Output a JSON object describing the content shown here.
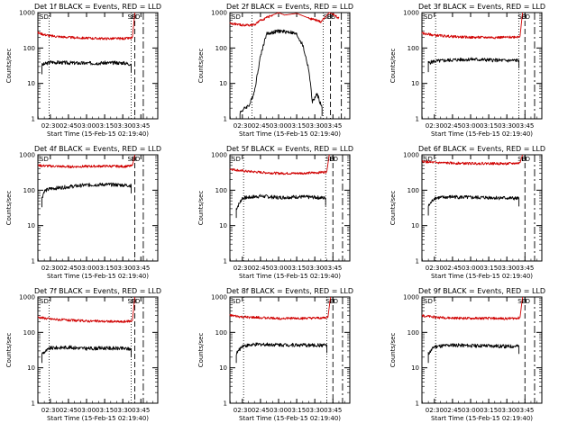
{
  "figure": {
    "colors": {
      "events": "#000000",
      "lld": "#d00000",
      "axes": "#000000"
    },
    "x_tick_labels": [
      "02:30",
      "02:45",
      "03:00",
      "03:15",
      "03:30",
      "03:45"
    ],
    "y_tick_labels": [
      "1",
      "10",
      "100",
      "1000"
    ],
    "panels": [
      {
        "title": "Det 1f BLACK = Events, RED = LLD",
        "ylabel": "Counts/sec",
        "xlabel": "Start Time (15-Feb-15 02:19:40)"
      },
      {
        "title": "Det 2f BLACK = Events, RED = LLD",
        "ylabel": "Counts/sec",
        "xlabel": "Start Time (15-Feb-15 02:19:40)"
      },
      {
        "title": "Det 3f BLACK = Events, RED = LLD",
        "ylabel": "Counts/sec",
        "xlabel": "Start Time (15-Feb-15 02:19:40)"
      },
      {
        "title": "Det 4f BLACK = Events, RED = LLD",
        "ylabel": "Counts/sec",
        "xlabel": "Start Time (15-Feb-15 02:19:40)"
      },
      {
        "title": "Det 5f BLACK = Events, RED = LLD",
        "ylabel": "Counts/sec",
        "xlabel": "Start Time (15-Feb-15 02:19:40)"
      },
      {
        "title": "Det 6f BLACK = Events, RED = LLD",
        "ylabel": "Counts/sec",
        "xlabel": "Start Time (15-Feb-15 02:19:40)"
      },
      {
        "title": "Det 7f BLACK = Events, RED = LLD",
        "ylabel": "Counts/sec",
        "xlabel": "Start Time (15-Feb-15 02:19:40)"
      },
      {
        "title": "Det 8f BLACK = Events, RED = LLD",
        "ylabel": "Counts/sec",
        "xlabel": "Start Time (15-Feb-15 02:19:40)"
      },
      {
        "title": "Det 9f BLACK = Events, RED = LLD",
        "ylabel": "Counts/sec",
        "xlabel": "Start Time (15-Feb-15 02:19:40)"
      }
    ]
  },
  "chart_data": [
    {
      "type": "line",
      "title": "Det 1f BLACK = Events, RED = LLD",
      "xlabel": "Start Time (15-Feb-15 02:19:40)",
      "ylabel": "Counts/sec",
      "y_scale": "log",
      "ylim": [
        1,
        1000
      ],
      "xlim": [
        "02:19:40",
        "03:59"
      ],
      "annotations": [
        "SD",
        "ED"
      ],
      "dotted_lines": [
        "02:29",
        "03:37"
      ],
      "dashed_lines": [
        "03:40",
        "03:47"
      ],
      "series": [
        {
          "name": "Events",
          "color": "#000000",
          "x": [
            "02:23",
            "02:30",
            "02:45",
            "03:00",
            "03:15",
            "03:30",
            "03:37"
          ],
          "y": [
            33,
            40,
            38,
            37,
            38,
            38,
            35
          ]
        },
        {
          "name": "LLD",
          "color": "#d00000",
          "x": [
            "02:19:40",
            "02:25",
            "02:30",
            "02:45",
            "03:00",
            "03:15",
            "03:30",
            "03:37",
            "03:38",
            "03:40"
          ],
          "y": [
            270,
            240,
            220,
            200,
            190,
            185,
            185,
            190,
            200,
            1000
          ]
        }
      ]
    },
    {
      "type": "line",
      "title": "Det 2f BLACK = Events, RED = LLD",
      "xlabel": "Start Time (15-Feb-15 02:19:40)",
      "ylabel": "Counts/sec",
      "y_scale": "log",
      "ylim": [
        1,
        1000
      ],
      "xlim": [
        "02:19:40",
        "03:59"
      ],
      "annotations": [
        "SD",
        "ED"
      ],
      "dotted_lines": [
        "02:38",
        "03:37"
      ],
      "dashed_lines": [
        "03:43",
        "03:52"
      ],
      "series": [
        {
          "name": "Events",
          "color": "#000000",
          "x": [
            "02:28",
            "02:32",
            "02:36",
            "02:40",
            "02:45",
            "02:50",
            "03:00",
            "03:10",
            "03:15",
            "03:20",
            "03:25",
            "03:28",
            "03:32",
            "03:36"
          ],
          "y": [
            1.5,
            2,
            2.5,
            6,
            60,
            250,
            300,
            280,
            240,
            120,
            25,
            3,
            5,
            2
          ]
        },
        {
          "name": "LLD",
          "color": "#d00000",
          "x": [
            "02:19:40",
            "02:30",
            "02:40",
            "02:45",
            "02:55",
            "03:00",
            "03:05",
            "03:15",
            "03:25",
            "03:35",
            "03:38",
            "03:42",
            "03:45",
            "03:50"
          ],
          "y": [
            500,
            440,
            450,
            600,
            850,
            1000,
            850,
            950,
            700,
            550,
            700,
            1000,
            900,
            700
          ]
        }
      ]
    },
    {
      "type": "line",
      "title": "Det 3f BLACK = Events, RED = LLD",
      "xlabel": "Start Time (15-Feb-15 02:19:40)",
      "ylabel": "Counts/sec",
      "y_scale": "log",
      "ylim": [
        1,
        1000
      ],
      "xlim": [
        "02:19:40",
        "03:59"
      ],
      "annotations": [
        "SD",
        "ED"
      ],
      "dotted_lines": [
        "02:31",
        "03:40"
      ],
      "dashed_lines": [
        "03:45",
        "03:53"
      ],
      "series": [
        {
          "name": "Events",
          "color": "#000000",
          "x": [
            "02:25",
            "02:30",
            "02:45",
            "03:00",
            "03:15",
            "03:30",
            "03:40"
          ],
          "y": [
            38,
            42,
            46,
            48,
            46,
            44,
            45
          ]
        },
        {
          "name": "LLD",
          "color": "#d00000",
          "x": [
            "02:19:40",
            "02:30",
            "02:45",
            "03:00",
            "03:15",
            "03:30",
            "03:40",
            "03:41",
            "03:43"
          ],
          "y": [
            260,
            230,
            210,
            200,
            200,
            200,
            210,
            220,
            1000
          ]
        }
      ]
    },
    {
      "type": "line",
      "title": "Det 4f BLACK = Events, RED = LLD",
      "xlabel": "Start Time (15-Feb-15 02:19:40)",
      "ylabel": "Counts/sec",
      "y_scale": "log",
      "ylim": [
        1,
        1000
      ],
      "xlim": [
        "02:19:40",
        "03:59"
      ],
      "annotations": [
        "SD",
        "ED"
      ],
      "dotted_lines": [],
      "dashed_lines": [
        "03:40",
        "03:47"
      ],
      "series": [
        {
          "name": "Events",
          "color": "#000000",
          "x": [
            "02:23",
            "02:25",
            "02:30",
            "02:45",
            "03:00",
            "03:15",
            "03:30",
            "03:37"
          ],
          "y": [
            60,
            95,
            110,
            125,
            140,
            145,
            140,
            135
          ]
        },
        {
          "name": "LLD",
          "color": "#d00000",
          "x": [
            "02:19:40",
            "02:30",
            "02:45",
            "03:00",
            "03:15",
            "03:30",
            "03:37",
            "03:38",
            "03:40"
          ],
          "y": [
            500,
            480,
            460,
            470,
            480,
            470,
            480,
            500,
            1000
          ]
        }
      ]
    },
    {
      "type": "line",
      "title": "Det 5f BLACK = Events, RED = LLD",
      "xlabel": "Start Time (15-Feb-15 02:19:40)",
      "ylabel": "Counts/sec",
      "y_scale": "log",
      "ylim": [
        1,
        1000
      ],
      "xlim": [
        "02:19:40",
        "03:59"
      ],
      "annotations": [
        "SD",
        "ED"
      ],
      "dotted_lines": [
        "02:31",
        "03:39"
      ],
      "dashed_lines": [
        "03:45",
        "03:53"
      ],
      "series": [
        {
          "name": "Events",
          "color": "#000000",
          "x": [
            "02:25",
            "02:30",
            "02:45",
            "03:00",
            "03:15",
            "03:30",
            "03:39"
          ],
          "y": [
            30,
            60,
            68,
            62,
            65,
            63,
            60
          ]
        },
        {
          "name": "LLD",
          "color": "#d00000",
          "x": [
            "02:19:40",
            "02:30",
            "02:45",
            "03:00",
            "03:15",
            "03:30",
            "03:39",
            "03:40",
            "03:42"
          ],
          "y": [
            400,
            350,
            320,
            300,
            300,
            310,
            330,
            350,
            1000
          ]
        }
      ]
    },
    {
      "type": "line",
      "title": "Det 6f BLACK = Events, RED = LLD",
      "xlabel": "Start Time (15-Feb-15 02:19:40)",
      "ylabel": "Counts/sec",
      "y_scale": "log",
      "ylim": [
        1,
        1000
      ],
      "xlim": [
        "02:19:40",
        "03:59"
      ],
      "annotations": [
        "SD",
        "ED"
      ],
      "dotted_lines": [
        "02:31"
      ],
      "dashed_lines": [
        "03:45",
        "03:53"
      ],
      "series": [
        {
          "name": "Events",
          "color": "#000000",
          "x": [
            "02:25",
            "02:30",
            "02:45",
            "03:00",
            "03:15",
            "03:30",
            "03:40"
          ],
          "y": [
            35,
            60,
            65,
            62,
            62,
            60,
            58
          ]
        },
        {
          "name": "LLD",
          "color": "#d00000",
          "x": [
            "02:19:40",
            "02:30",
            "02:45",
            "03:00",
            "03:15",
            "03:30",
            "03:40",
            "03:41",
            "03:43"
          ],
          "y": [
            650,
            600,
            580,
            570,
            570,
            560,
            580,
            600,
            1000
          ]
        }
      ]
    },
    {
      "type": "line",
      "title": "Det 7f BLACK = Events, RED = LLD",
      "xlabel": "Start Time (15-Feb-15 02:19:40)",
      "ylabel": "Counts/sec",
      "y_scale": "log",
      "ylim": [
        1,
        1000
      ],
      "xlim": [
        "02:19:40",
        "03:59"
      ],
      "annotations": [
        "SD",
        "ED"
      ],
      "dotted_lines": [
        "02:29",
        "03:37"
      ],
      "dashed_lines": [
        "03:40",
        "03:47"
      ],
      "series": [
        {
          "name": "Events",
          "color": "#000000",
          "x": [
            "02:23",
            "02:30",
            "02:45",
            "03:00",
            "03:15",
            "03:30",
            "03:37"
          ],
          "y": [
            25,
            36,
            38,
            35,
            36,
            35,
            34
          ]
        },
        {
          "name": "LLD",
          "color": "#d00000",
          "x": [
            "02:19:40",
            "02:30",
            "02:45",
            "03:00",
            "03:15",
            "03:30",
            "03:37",
            "03:38",
            "03:40"
          ],
          "y": [
            270,
            240,
            220,
            210,
            205,
            200,
            210,
            220,
            1000
          ]
        }
      ]
    },
    {
      "type": "line",
      "title": "Det 8f BLACK = Events, RED = LLD",
      "xlabel": "Start Time (15-Feb-15 02:19:40)",
      "ylabel": "Counts/sec",
      "y_scale": "log",
      "ylim": [
        1,
        1000
      ],
      "xlim": [
        "02:19:40",
        "03:59"
      ],
      "annotations": [
        "SD",
        "ED"
      ],
      "dotted_lines": [
        "02:31",
        "03:40"
      ],
      "dashed_lines": [
        "03:45",
        "03:53"
      ],
      "series": [
        {
          "name": "Events",
          "color": "#000000",
          "x": [
            "02:25",
            "02:30",
            "02:45",
            "03:00",
            "03:15",
            "03:30",
            "03:40"
          ],
          "y": [
            25,
            42,
            46,
            45,
            44,
            43,
            44
          ]
        },
        {
          "name": "LLD",
          "color": "#d00000",
          "x": [
            "02:19:40",
            "02:30",
            "02:45",
            "03:00",
            "03:15",
            "03:30",
            "03:40",
            "03:41",
            "03:43"
          ],
          "y": [
            300,
            270,
            260,
            250,
            250,
            250,
            260,
            280,
            1000
          ]
        }
      ]
    },
    {
      "type": "line",
      "title": "Det 9f BLACK = Events, RED = LLD",
      "xlabel": "Start Time (15-Feb-15 02:19:40)",
      "ylabel": "Counts/sec",
      "y_scale": "log",
      "ylim": [
        1,
        1000
      ],
      "xlim": [
        "02:19:40",
        "03:59"
      ],
      "annotations": [
        "SD",
        "ED"
      ],
      "dotted_lines": [
        "02:31"
      ],
      "dashed_lines": [
        "03:45",
        "03:53"
      ],
      "series": [
        {
          "name": "Events",
          "color": "#000000",
          "x": [
            "02:25",
            "02:30",
            "02:45",
            "03:00",
            "03:15",
            "03:30",
            "03:40"
          ],
          "y": [
            25,
            40,
            44,
            42,
            42,
            40,
            41
          ]
        },
        {
          "name": "LLD",
          "color": "#d00000",
          "x": [
            "02:19:40",
            "02:30",
            "02:45",
            "03:00",
            "03:15",
            "03:30",
            "03:40",
            "03:41",
            "03:43"
          ],
          "y": [
            300,
            270,
            255,
            250,
            250,
            245,
            255,
            270,
            1000
          ]
        }
      ]
    }
  ]
}
